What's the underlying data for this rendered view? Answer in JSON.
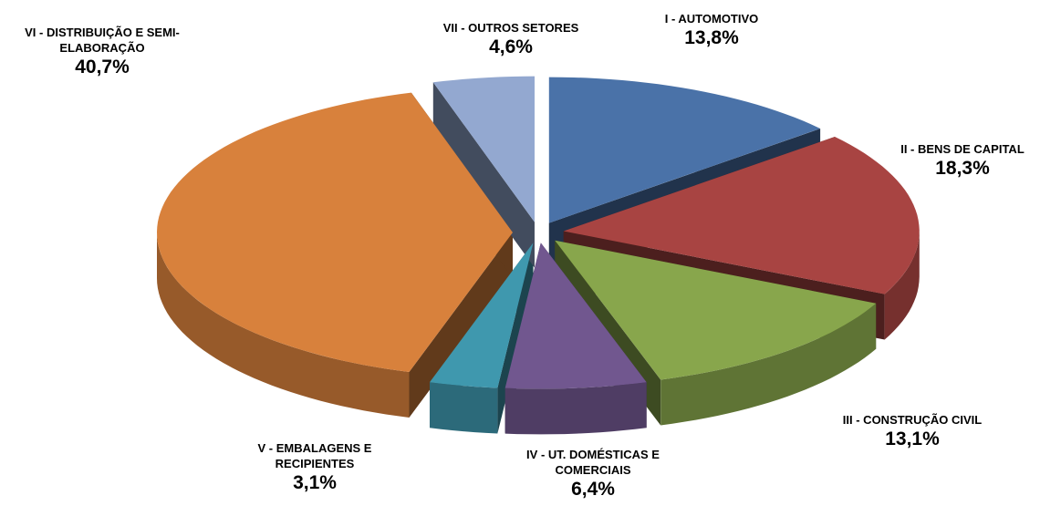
{
  "chart_data": {
    "type": "pie3d",
    "categories": [
      "I - AUTOMOTIVO",
      "II - BENS DE CAPITAL",
      "III - CONSTRUÇÃO CIVIL",
      "IV - UT. DOMÉSTICAS E COMERCIAIS",
      "V - EMBALAGENS E RECIPIENTES",
      "VI - DISTRIBUIÇÃO E SEMI-ELABORAÇÃO",
      "VII - OUTROS SETORES"
    ],
    "values": [
      13.8,
      18.3,
      13.1,
      6.4,
      3.1,
      40.7,
      4.6
    ],
    "value_labels": [
      "13,8%",
      "18,3%",
      "13,1%",
      "6,4%",
      "3,1%",
      "40,7%",
      "4,6%"
    ],
    "colors": [
      "#4a72a8",
      "#a84442",
      "#88a64c",
      "#71578f",
      "#3f98ae",
      "#d8813c",
      "#93a8d0"
    ]
  }
}
